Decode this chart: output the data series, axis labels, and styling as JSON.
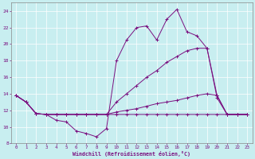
{
  "xlabel": "Windchill (Refroidissement éolien,°C)",
  "xlim": [
    -0.5,
    23.5
  ],
  "ylim": [
    8,
    25
  ],
  "yticks": [
    8,
    10,
    12,
    14,
    16,
    18,
    20,
    22,
    24
  ],
  "xticks": [
    0,
    1,
    2,
    3,
    4,
    5,
    6,
    7,
    8,
    9,
    10,
    11,
    12,
    13,
    14,
    15,
    16,
    17,
    18,
    19,
    20,
    21,
    22,
    23
  ],
  "bg_color": "#c8eef0",
  "line_color": "#7b1080",
  "grid_color": "#ffffff",
  "series": [
    {
      "x": [
        0,
        1,
        2,
        3,
        4,
        5,
        6,
        7,
        8,
        9,
        10,
        11,
        12,
        13,
        14,
        15,
        16,
        17,
        18,
        19,
        20,
        21,
        22,
        23
      ],
      "y": [
        13.8,
        13.0,
        11.6,
        11.5,
        10.8,
        10.6,
        9.5,
        9.2,
        8.8,
        9.8,
        18.0,
        20.5,
        22.0,
        22.2,
        20.5,
        23.0,
        24.2,
        21.5,
        21.0,
        19.5,
        13.8,
        11.5,
        11.5,
        11.5
      ]
    },
    {
      "x": [
        0,
        1,
        2,
        3,
        4,
        5,
        6,
        7,
        8,
        9,
        10,
        11,
        12,
        13,
        14,
        15,
        16,
        17,
        18,
        19,
        20,
        21,
        22,
        23
      ],
      "y": [
        13.8,
        13.0,
        11.6,
        11.5,
        11.5,
        11.5,
        11.5,
        11.5,
        11.5,
        11.5,
        13.0,
        14.0,
        15.0,
        16.0,
        16.8,
        17.8,
        18.5,
        19.2,
        19.5,
        19.5,
        13.5,
        11.5,
        11.5,
        11.5
      ]
    },
    {
      "x": [
        0,
        1,
        2,
        3,
        4,
        5,
        6,
        7,
        8,
        9,
        10,
        11,
        12,
        13,
        14,
        15,
        16,
        17,
        18,
        19,
        20,
        21,
        22,
        23
      ],
      "y": [
        13.8,
        13.0,
        11.6,
        11.5,
        11.5,
        11.5,
        11.5,
        11.5,
        11.5,
        11.5,
        11.8,
        12.0,
        12.2,
        12.5,
        12.8,
        13.0,
        13.2,
        13.5,
        13.8,
        14.0,
        13.8,
        11.5,
        11.5,
        11.5
      ]
    },
    {
      "x": [
        0,
        1,
        2,
        3,
        4,
        5,
        6,
        7,
        8,
        9,
        10,
        11,
        12,
        13,
        14,
        15,
        16,
        17,
        18,
        19,
        20,
        21,
        22,
        23
      ],
      "y": [
        13.8,
        13.0,
        11.6,
        11.5,
        11.5,
        11.5,
        11.5,
        11.5,
        11.5,
        11.5,
        11.5,
        11.5,
        11.5,
        11.5,
        11.5,
        11.5,
        11.5,
        11.5,
        11.5,
        11.5,
        11.5,
        11.5,
        11.5,
        11.5
      ]
    }
  ],
  "figsize": [
    3.2,
    2.0
  ],
  "dpi": 100
}
